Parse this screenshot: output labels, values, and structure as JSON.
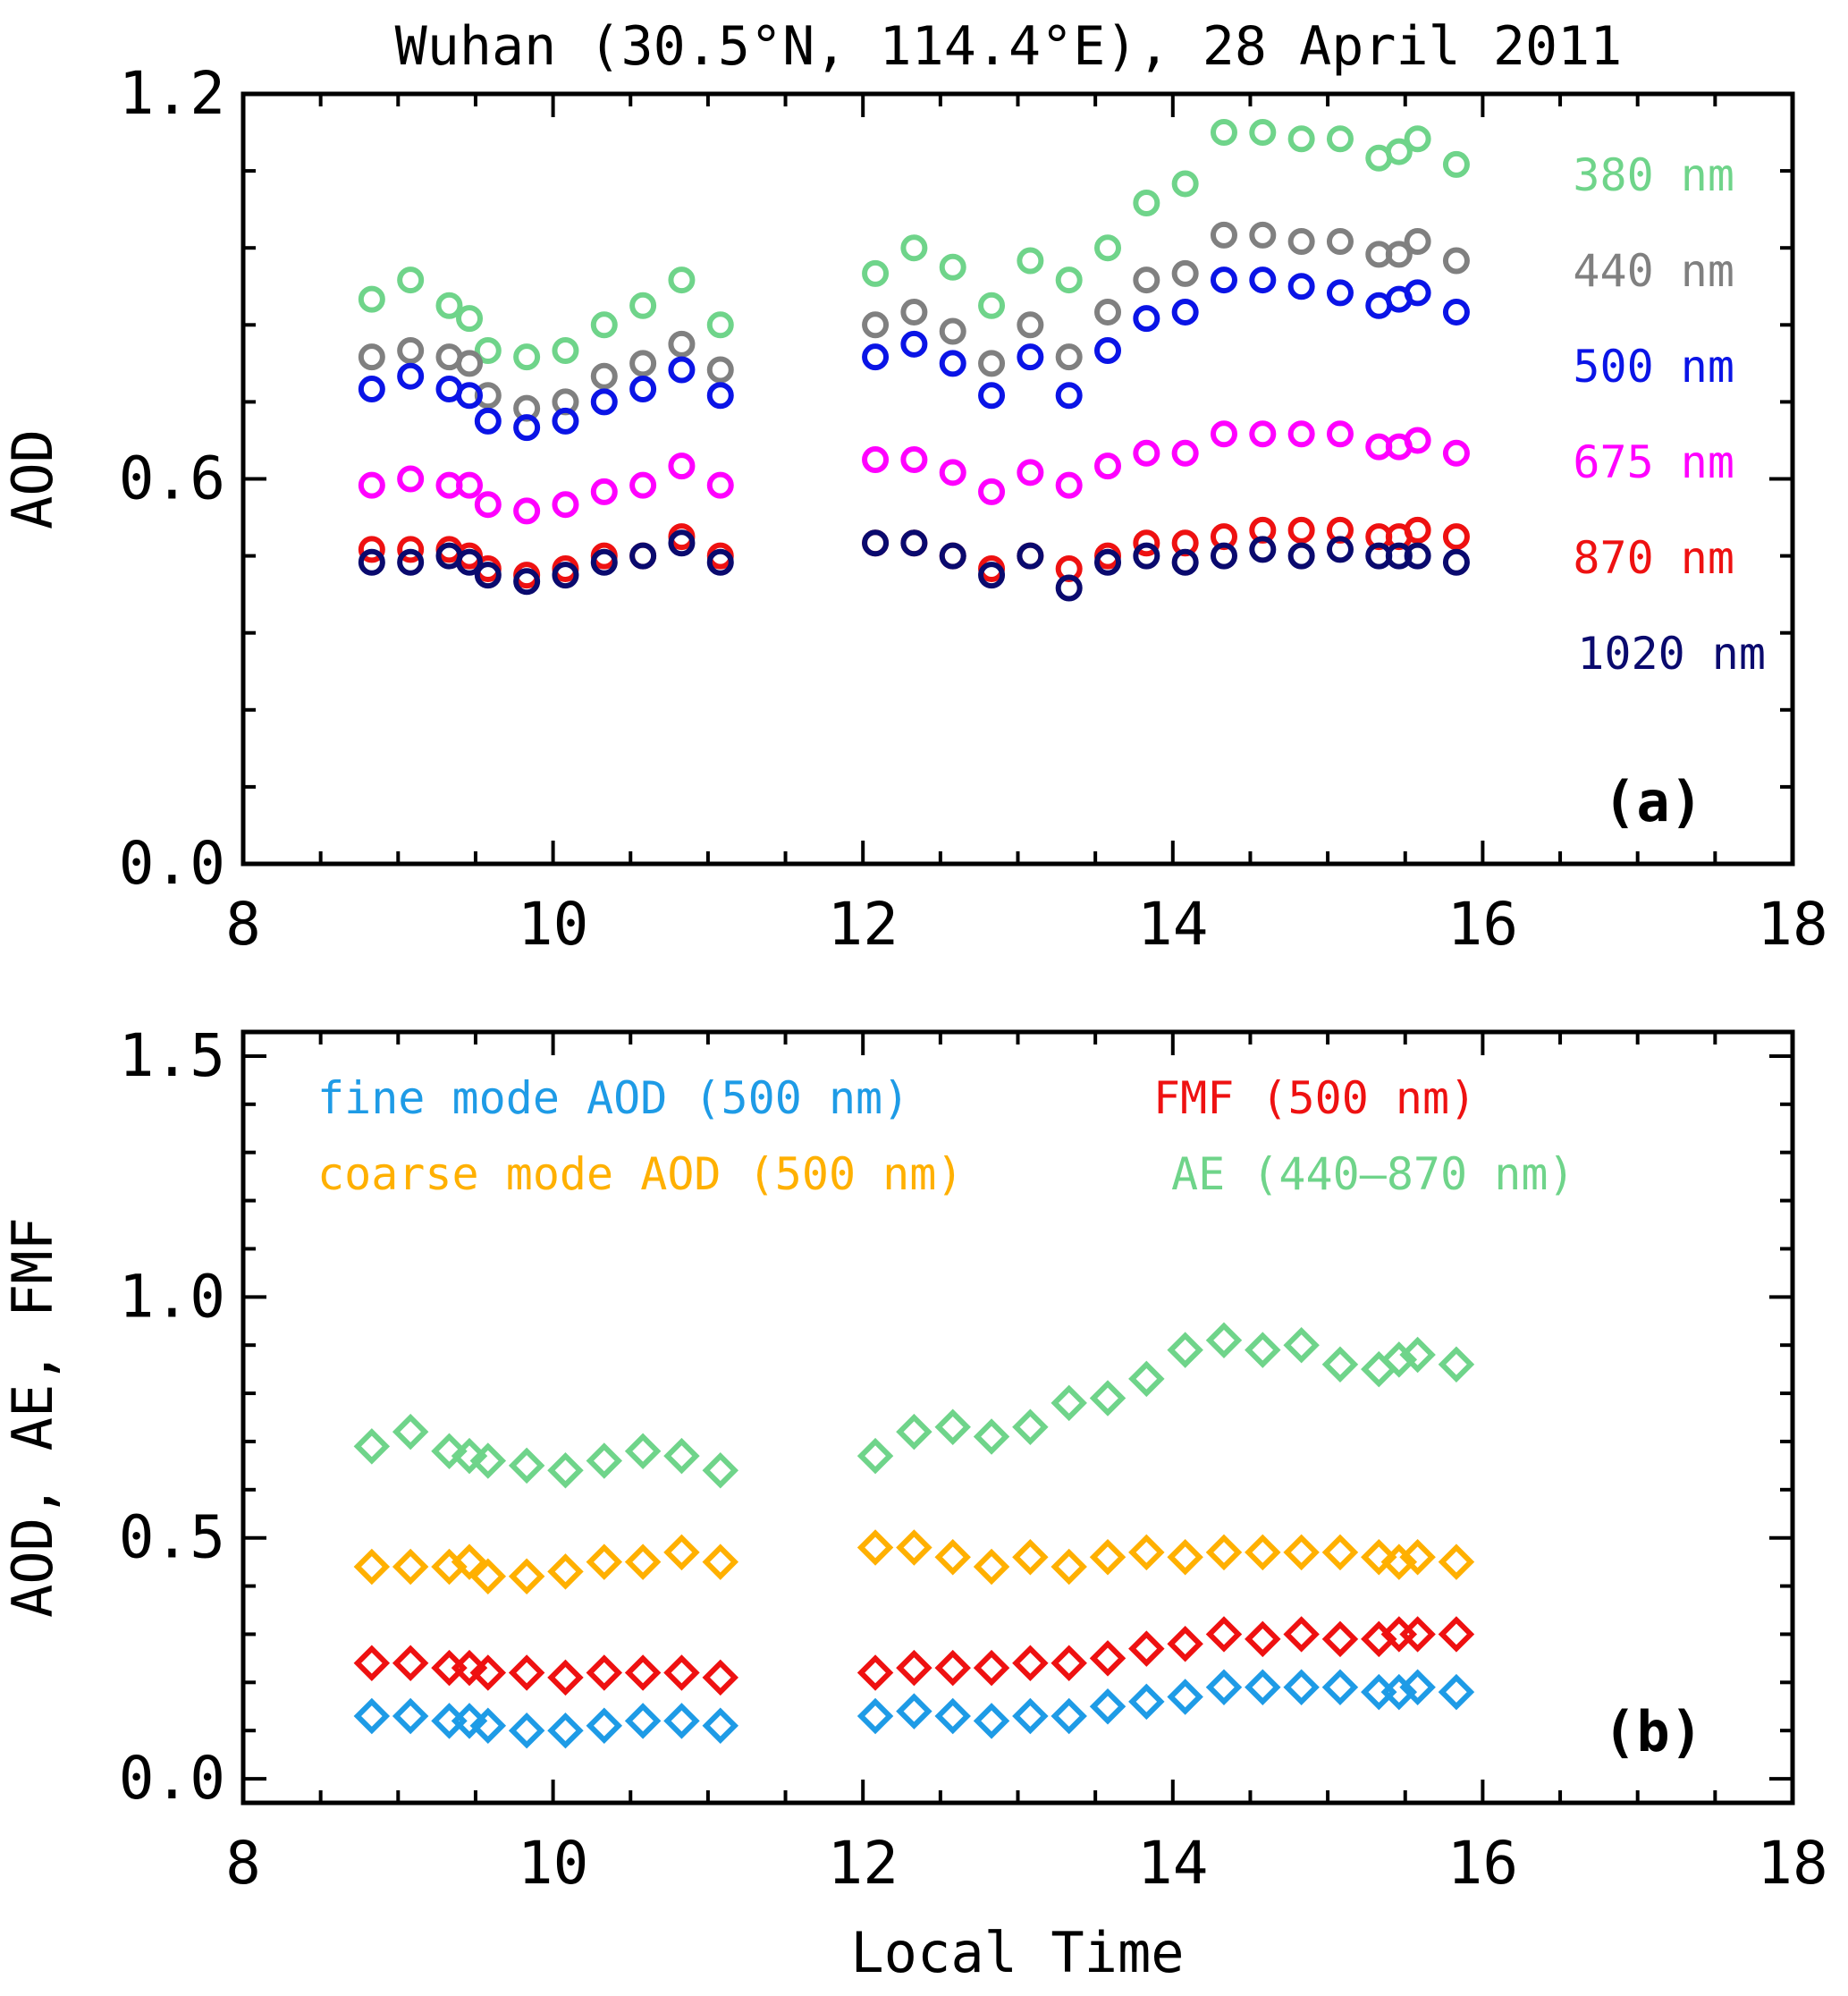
{
  "title": "Wuhan (30.5°N, 114.4°E), 28 April 2011",
  "chart_data": [
    {
      "type": "scatter",
      "panel_label": "(a)",
      "ylabel": "AOD",
      "xlabel": "",
      "xlim": [
        8,
        18
      ],
      "ylim": [
        0,
        1.2
      ],
      "x_ticks": [
        8,
        10,
        12,
        14,
        16,
        18
      ],
      "y_ticks": [
        0.0,
        0.6,
        1.2
      ],
      "y_tick_labels": [
        "0.0",
        "0.6",
        "1.2"
      ],
      "marker": "circle",
      "legend_position": "right",
      "x": [
        8.83,
        9.08,
        9.33,
        9.46,
        9.58,
        9.83,
        10.08,
        10.33,
        10.58,
        10.83,
        11.08,
        12.08,
        12.33,
        12.58,
        12.83,
        13.08,
        13.33,
        13.58,
        13.83,
        14.08,
        14.33,
        14.58,
        14.83,
        15.08,
        15.33,
        15.46,
        15.58,
        15.83
      ],
      "series": [
        {
          "name": "380 nm",
          "color": "#6fd48a",
          "values": [
            0.88,
            0.91,
            0.87,
            0.85,
            0.8,
            0.79,
            0.8,
            0.84,
            0.87,
            0.91,
            0.84,
            0.92,
            0.96,
            0.93,
            0.87,
            0.94,
            0.91,
            0.96,
            1.03,
            1.06,
            1.14,
            1.14,
            1.13,
            1.13,
            1.1,
            1.11,
            1.13,
            1.09
          ]
        },
        {
          "name": "440 nm",
          "color": "#808080",
          "values": [
            0.79,
            0.8,
            0.79,
            0.78,
            0.73,
            0.71,
            0.72,
            0.76,
            0.78,
            0.81,
            0.77,
            0.84,
            0.86,
            0.83,
            0.78,
            0.84,
            0.79,
            0.86,
            0.91,
            0.92,
            0.98,
            0.98,
            0.97,
            0.97,
            0.95,
            0.95,
            0.97,
            0.94
          ]
        },
        {
          "name": "500 nm",
          "color": "#0a14e6",
          "values": [
            0.74,
            0.76,
            0.74,
            0.73,
            0.69,
            0.68,
            0.69,
            0.72,
            0.74,
            0.77,
            0.73,
            0.79,
            0.81,
            0.78,
            0.73,
            0.79,
            0.73,
            0.8,
            0.85,
            0.86,
            0.91,
            0.91,
            0.9,
            0.89,
            0.87,
            0.88,
            0.89,
            0.86
          ]
        },
        {
          "name": "675 nm",
          "color": "#ff00ff",
          "values": [
            0.59,
            0.6,
            0.59,
            0.59,
            0.56,
            0.55,
            0.56,
            0.58,
            0.59,
            0.62,
            0.59,
            0.63,
            0.63,
            0.61,
            0.58,
            0.61,
            0.59,
            0.62,
            0.64,
            0.64,
            0.67,
            0.67,
            0.67,
            0.67,
            0.65,
            0.65,
            0.66,
            0.64
          ]
        },
        {
          "name": "870 nm",
          "color": "#ee1111",
          "values": [
            0.49,
            0.49,
            0.49,
            0.48,
            0.46,
            0.45,
            0.46,
            0.48,
            0.48,
            0.51,
            0.48,
            0.5,
            0.5,
            0.48,
            0.46,
            0.48,
            0.46,
            0.48,
            0.5,
            0.5,
            0.51,
            0.52,
            0.52,
            0.52,
            0.51,
            0.51,
            0.52,
            0.51
          ]
        },
        {
          "name": "1020 nm",
          "color": "#0a0a6e",
          "values": [
            0.47,
            0.47,
            0.48,
            0.47,
            0.45,
            0.44,
            0.45,
            0.47,
            0.48,
            0.5,
            0.47,
            0.5,
            0.5,
            0.48,
            0.45,
            0.48,
            0.43,
            0.47,
            0.48,
            0.47,
            0.48,
            0.49,
            0.48,
            0.49,
            0.48,
            0.48,
            0.48,
            0.47
          ]
        }
      ]
    },
    {
      "type": "scatter",
      "panel_label": "(b)",
      "ylabel": "AOD, AE, FMF",
      "xlabel": "Local Time",
      "xlim": [
        8,
        18
      ],
      "ylim": [
        -0.05,
        1.55
      ],
      "x_ticks": [
        8,
        10,
        12,
        14,
        16,
        18
      ],
      "y_ticks": [
        0.0,
        0.5,
        1.0,
        1.5
      ],
      "y_tick_labels": [
        "0.0",
        "0.5",
        "1.0",
        "1.5"
      ],
      "marker": "diamond",
      "legend_position": "top",
      "x": [
        8.83,
        9.08,
        9.33,
        9.46,
        9.58,
        9.83,
        10.08,
        10.33,
        10.58,
        10.83,
        11.08,
        12.08,
        12.33,
        12.58,
        12.83,
        13.08,
        13.33,
        13.58,
        13.83,
        14.08,
        14.33,
        14.58,
        14.83,
        15.08,
        15.33,
        15.46,
        15.58,
        15.83
      ],
      "series": [
        {
          "name": "fine mode AOD (500 nm)",
          "color": "#1e9be6",
          "values": [
            0.13,
            0.13,
            0.12,
            0.12,
            0.11,
            0.1,
            0.1,
            0.11,
            0.12,
            0.12,
            0.11,
            0.13,
            0.14,
            0.13,
            0.12,
            0.13,
            0.13,
            0.15,
            0.16,
            0.17,
            0.19,
            0.19,
            0.19,
            0.19,
            0.18,
            0.18,
            0.19,
            0.18
          ]
        },
        {
          "name": "coarse mode AOD (500 nm)",
          "color": "#ffb000",
          "values": [
            0.44,
            0.44,
            0.44,
            0.45,
            0.42,
            0.42,
            0.43,
            0.45,
            0.45,
            0.47,
            0.45,
            0.48,
            0.48,
            0.46,
            0.44,
            0.46,
            0.44,
            0.46,
            0.47,
            0.46,
            0.47,
            0.47,
            0.47,
            0.47,
            0.46,
            0.45,
            0.46,
            0.45
          ]
        },
        {
          "name": "FMF (500 nm)",
          "color": "#ee1111",
          "values": [
            0.24,
            0.24,
            0.23,
            0.23,
            0.22,
            0.22,
            0.21,
            0.22,
            0.22,
            0.22,
            0.21,
            0.22,
            0.23,
            0.23,
            0.23,
            0.24,
            0.24,
            0.25,
            0.27,
            0.28,
            0.3,
            0.29,
            0.3,
            0.29,
            0.29,
            0.3,
            0.3,
            0.3
          ]
        },
        {
          "name": "AE (440–870 nm)",
          "color": "#6fd48a",
          "values": [
            0.69,
            0.72,
            0.68,
            0.67,
            0.66,
            0.65,
            0.64,
            0.66,
            0.68,
            0.67,
            0.64,
            0.67,
            0.72,
            0.73,
            0.71,
            0.73,
            0.78,
            0.79,
            0.83,
            0.89,
            0.91,
            0.89,
            0.9,
            0.86,
            0.85,
            0.87,
            0.88,
            0.86
          ]
        }
      ]
    }
  ]
}
